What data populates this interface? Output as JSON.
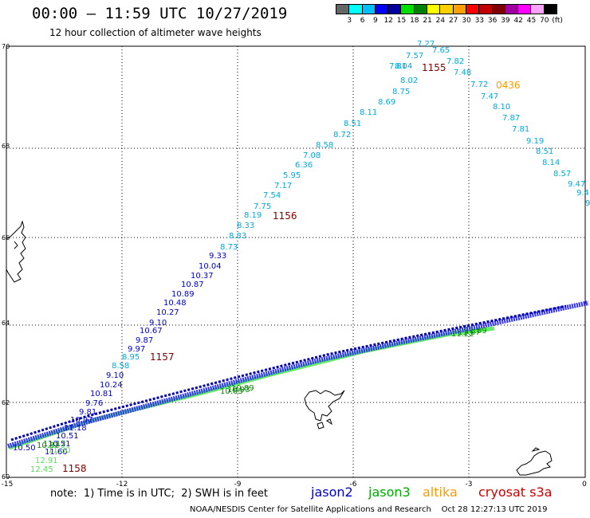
{
  "header": {
    "title": "00:00 – 11:59 UTC 10/27/2019",
    "subtitle": "12 hour collection of altimeter wave heights"
  },
  "colorbar": {
    "colors": [
      "#666666",
      "#00ffff",
      "#00bfff",
      "#0000ff",
      "#0000a0",
      "#00e000",
      "#008000",
      "#ffff00",
      "#ffd000",
      "#ffa000",
      "#ff0000",
      "#c00000",
      "#800000",
      "#a000a0",
      "#ff00ff",
      "#ffa0ff",
      "#000000"
    ],
    "labels": [
      "3",
      "6",
      "9",
      "12",
      "15",
      "18",
      "21",
      "24",
      "27",
      "30",
      "33",
      "36",
      "39",
      "42",
      "45",
      "70",
      "(ft)"
    ]
  },
  "map": {
    "lat_ticks": [
      "70",
      "68",
      "66",
      "64",
      "62",
      "60"
    ],
    "lon_ticks": [
      "-15",
      "-12",
      "-9",
      "-6",
      "-3",
      "0"
    ],
    "pass_labels": [
      {
        "text": "1155",
        "color": "#800000"
      },
      {
        "text": "0436",
        "color": "#ff9900"
      },
      {
        "text": "1156",
        "color": "#800000"
      },
      {
        "text": "1157",
        "color": "#800000"
      },
      {
        "text": "1158",
        "color": "#800000"
      }
    ],
    "jason3_labels": [
      "10.63",
      "10.93",
      "10.89",
      "11.22",
      "11.07",
      "11.09",
      "10.82",
      "11.12",
      "11.80",
      "12.91",
      "12.45"
    ],
    "cyan_values": [
      "7.27",
      "7.65",
      "7.57",
      "7.82",
      "8.04",
      "7.81",
      "7.48",
      "8.02",
      "7.72",
      "8.75",
      "7.47",
      "8.69",
      "8.10",
      "8.11",
      "7.87",
      "8.51",
      "7.81",
      "8.72",
      "9.19",
      "8.58",
      "8.51",
      "7.08",
      "8.14",
      "6.36",
      "8.57",
      "5.95",
      "9.47",
      "7.17",
      "9.4",
      "7.54",
      "9",
      "7.75",
      "8.19",
      "8.33",
      "8.83",
      "8.73",
      "8.95",
      "8.58"
    ],
    "blue_values": [
      "9.33",
      "10.04",
      "10.37",
      "10.87",
      "10.89",
      "10.48",
      "10.27",
      "9.10",
      "10.67",
      "9.87",
      "9.97",
      "9.10",
      "10.24",
      "10.81",
      "9.76",
      "9.81",
      "10.97",
      "11.18",
      "10.51",
      "10.51",
      "11.60",
      "10.50"
    ]
  },
  "note": "note:  1) Time is in UTC;  2) SWH is in feet",
  "legend": [
    {
      "name": "jason2",
      "color": "#0000cc"
    },
    {
      "name": "jason3",
      "color": "#00aa00"
    },
    {
      "name": "altika",
      "color": "#ff9900"
    },
    {
      "name": "cryosat s3a",
      "color": "#cc0000"
    }
  ],
  "footer": "NOAA/NESDIS Center for Satellite Applications and Research    Oct 28 12:27:13 UTC 2019"
}
